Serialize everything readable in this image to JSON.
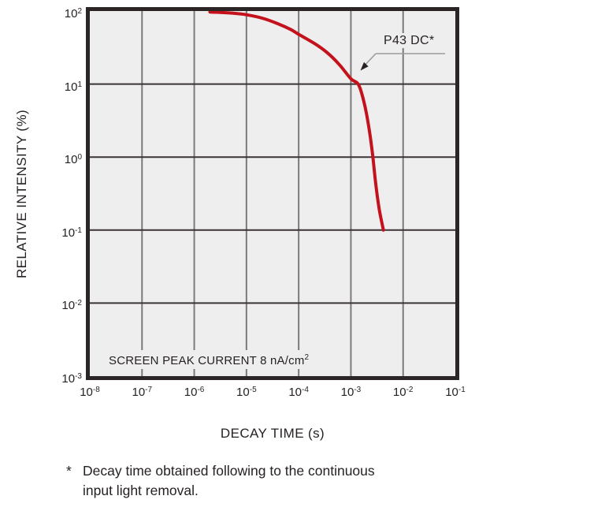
{
  "chart_data": {
    "type": "line",
    "title": "",
    "x_axis": {
      "label": "DECAY TIME (s)",
      "scale": "log",
      "tick_base": "10",
      "tick_exponents": [
        -8,
        -7,
        -6,
        -5,
        -4,
        -3,
        -2,
        -1
      ],
      "range": [
        1e-08,
        0.1
      ]
    },
    "y_axis": {
      "label": "RELATIVE INTENSITY (%)",
      "scale": "log",
      "tick_base": "10",
      "tick_exponents": [
        2,
        1,
        0,
        -1,
        -2,
        -3
      ],
      "range": [
        0.001,
        100.0
      ]
    },
    "grid": true,
    "legend_position": "in-plot annotation with arrow",
    "series": [
      {
        "name": "P43 DC*",
        "color": "#c4121d",
        "points": [
          [
            2e-06,
            97
          ],
          [
            4e-06,
            95
          ],
          [
            7e-06,
            92
          ],
          [
            1e-05,
            89
          ],
          [
            2e-05,
            80
          ],
          [
            4e-05,
            67
          ],
          [
            7e-05,
            56
          ],
          [
            0.0001,
            48
          ],
          [
            0.0002,
            36
          ],
          [
            0.00035,
            27
          ],
          [
            0.0006,
            18.5
          ],
          [
            0.001,
            11.8
          ],
          [
            0.0014,
            9.8
          ],
          [
            0.0018,
            5.5
          ],
          [
            0.0022,
            2.6
          ],
          [
            0.0026,
            1.1
          ],
          [
            0.003,
            0.42
          ],
          [
            0.0035,
            0.19
          ],
          [
            0.0042,
            0.1
          ]
        ]
      }
    ],
    "annotation": {
      "label": "P43 DC*",
      "target_point": [
        0.0015,
        14
      ]
    },
    "inside_note": {
      "text": "SCREEN PEAK CURRENT 8 nA/cm",
      "sup": "2"
    }
  },
  "footnote": {
    "marker": "*",
    "line1": "Decay time obtained following to the continuous",
    "line2": "input light removal."
  },
  "colors": {
    "page_bg": "#ffffff",
    "plot_bg": "#efeeee",
    "frame": "#2b2526",
    "grid_vertical": "#7e7979",
    "grid_horizontal": "#3a3434",
    "curve": "#c4121d",
    "leader_line": "#9b9b9b",
    "arrowhead": "#272222",
    "text": "#272222"
  }
}
